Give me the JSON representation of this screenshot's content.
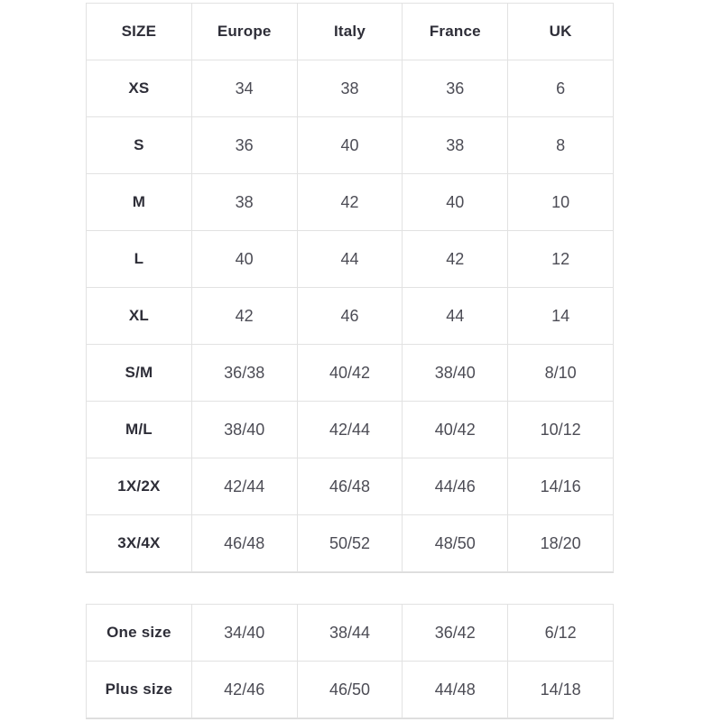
{
  "colors": {
    "background": "#ffffff",
    "border": "#e2e2e2",
    "heading_text": "#2e2e38",
    "value_text": "#4c4c55"
  },
  "size_table": {
    "headers": [
      "SIZE",
      "Europe",
      "Italy",
      "France",
      "UK"
    ],
    "rows": [
      [
        "XS",
        "34",
        "38",
        "36",
        "6"
      ],
      [
        "S",
        "36",
        "40",
        "38",
        "8"
      ],
      [
        "M",
        "38",
        "42",
        "40",
        "10"
      ],
      [
        "L",
        "40",
        "44",
        "42",
        "12"
      ],
      [
        "XL",
        "42",
        "46",
        "44",
        "14"
      ],
      [
        "S/M",
        "36/38",
        "40/42",
        "38/40",
        "8/10"
      ],
      [
        "M/L",
        "38/40",
        "42/44",
        "40/42",
        "10/12"
      ],
      [
        "1X/2X",
        "42/44",
        "46/48",
        "44/46",
        "14/16"
      ],
      [
        "3X/4X",
        "46/48",
        "50/52",
        "48/50",
        "18/20"
      ]
    ]
  },
  "special_table": {
    "rows": [
      [
        "One size",
        "34/40",
        "38/44",
        "36/42",
        "6/12"
      ],
      [
        "Plus size",
        "42/46",
        "46/50",
        "44/48",
        "14/18"
      ]
    ]
  }
}
